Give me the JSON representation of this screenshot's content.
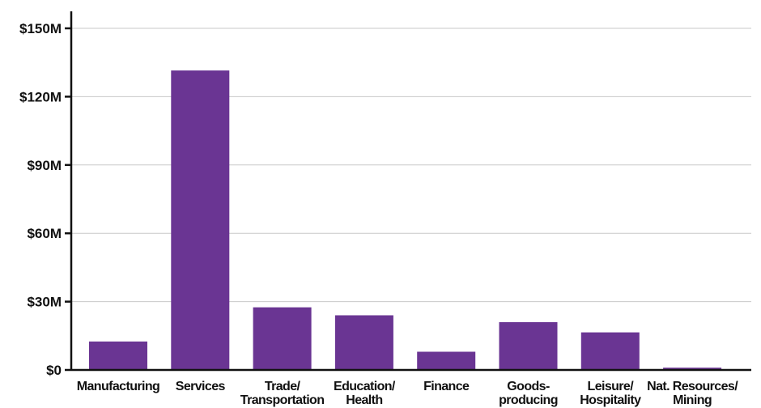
{
  "chart_data": {
    "type": "bar",
    "title": "",
    "xlabel": "",
    "ylabel": "",
    "categories": [
      "Manufacturing",
      "Services",
      "Trade/\nTransportation",
      "Education/\nHealth",
      "Finance",
      "Goods-\nproducing",
      "Leisure/\nHospitality",
      "Nat. Resources/\nMining"
    ],
    "values": [
      12.5,
      131.5,
      27.5,
      24,
      8,
      21,
      16.5,
      1
    ],
    "ylim": [
      0,
      150
    ],
    "yticks": [
      0,
      30,
      60,
      90,
      120,
      150
    ],
    "ytick_labels": [
      "$0",
      "$30M",
      "$60M",
      "$90M",
      "$120M",
      "$150M"
    ],
    "grid": true,
    "legend": "none",
    "colors": {
      "bar": "#6a3593",
      "grid": "#c8c8c8",
      "axis": "#111111",
      "text": "#111111"
    }
  }
}
